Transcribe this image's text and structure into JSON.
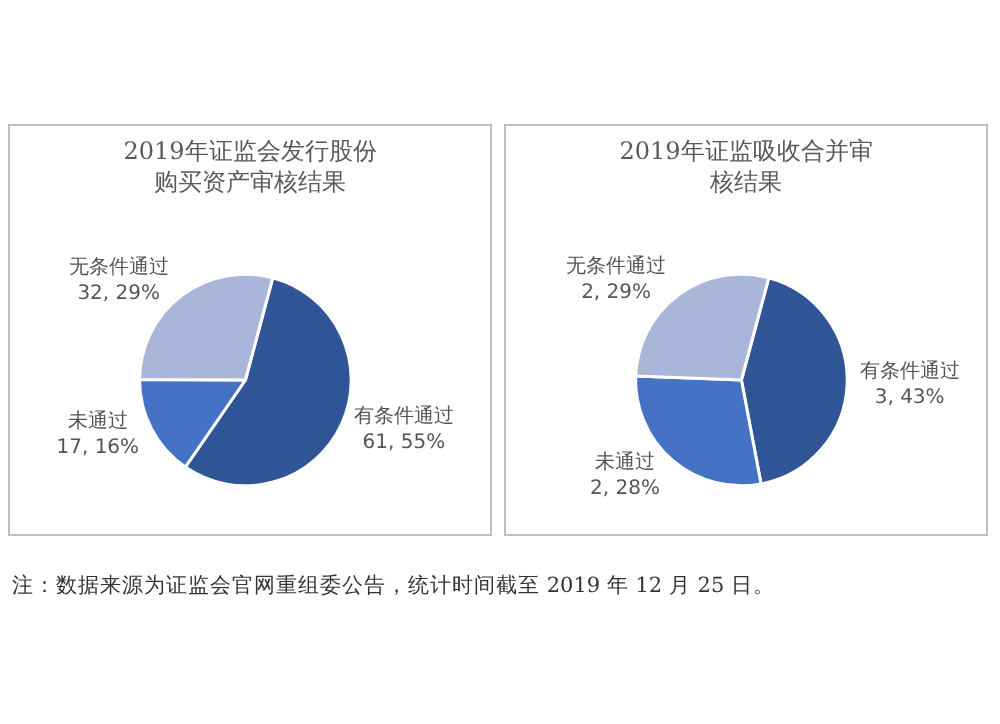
{
  "chart_data": [
    {
      "type": "pie",
      "title": "2019年证监会发行股份购买资产审核结果",
      "categories": [
        "有条件通过",
        "未通过",
        "无条件通过"
      ],
      "values": [
        61,
        17,
        32
      ],
      "colors": [
        "#2f5597",
        "#4472c4",
        "#a9b6da"
      ],
      "value_labels": [
        "61, 55%",
        "17, 16%",
        "32, 29%"
      ],
      "annotations": [
        "注：数据来源为证监会官网重组委公告，统计时间截至 2019 年 12 月 25 日。"
      ],
      "legend": false
    },
    {
      "type": "pie",
      "title": "2019年证监吸收合并审核结果",
      "categories": [
        "有条件通过",
        "未通过",
        "无条件通过"
      ],
      "values": [
        3,
        2,
        2
      ],
      "colors": [
        "#2f5597",
        "#4472c4",
        "#a9b6da"
      ],
      "value_labels": [
        "3, 43%",
        "2, 28%",
        "2, 29%"
      ],
      "legend": false
    }
  ]
}
